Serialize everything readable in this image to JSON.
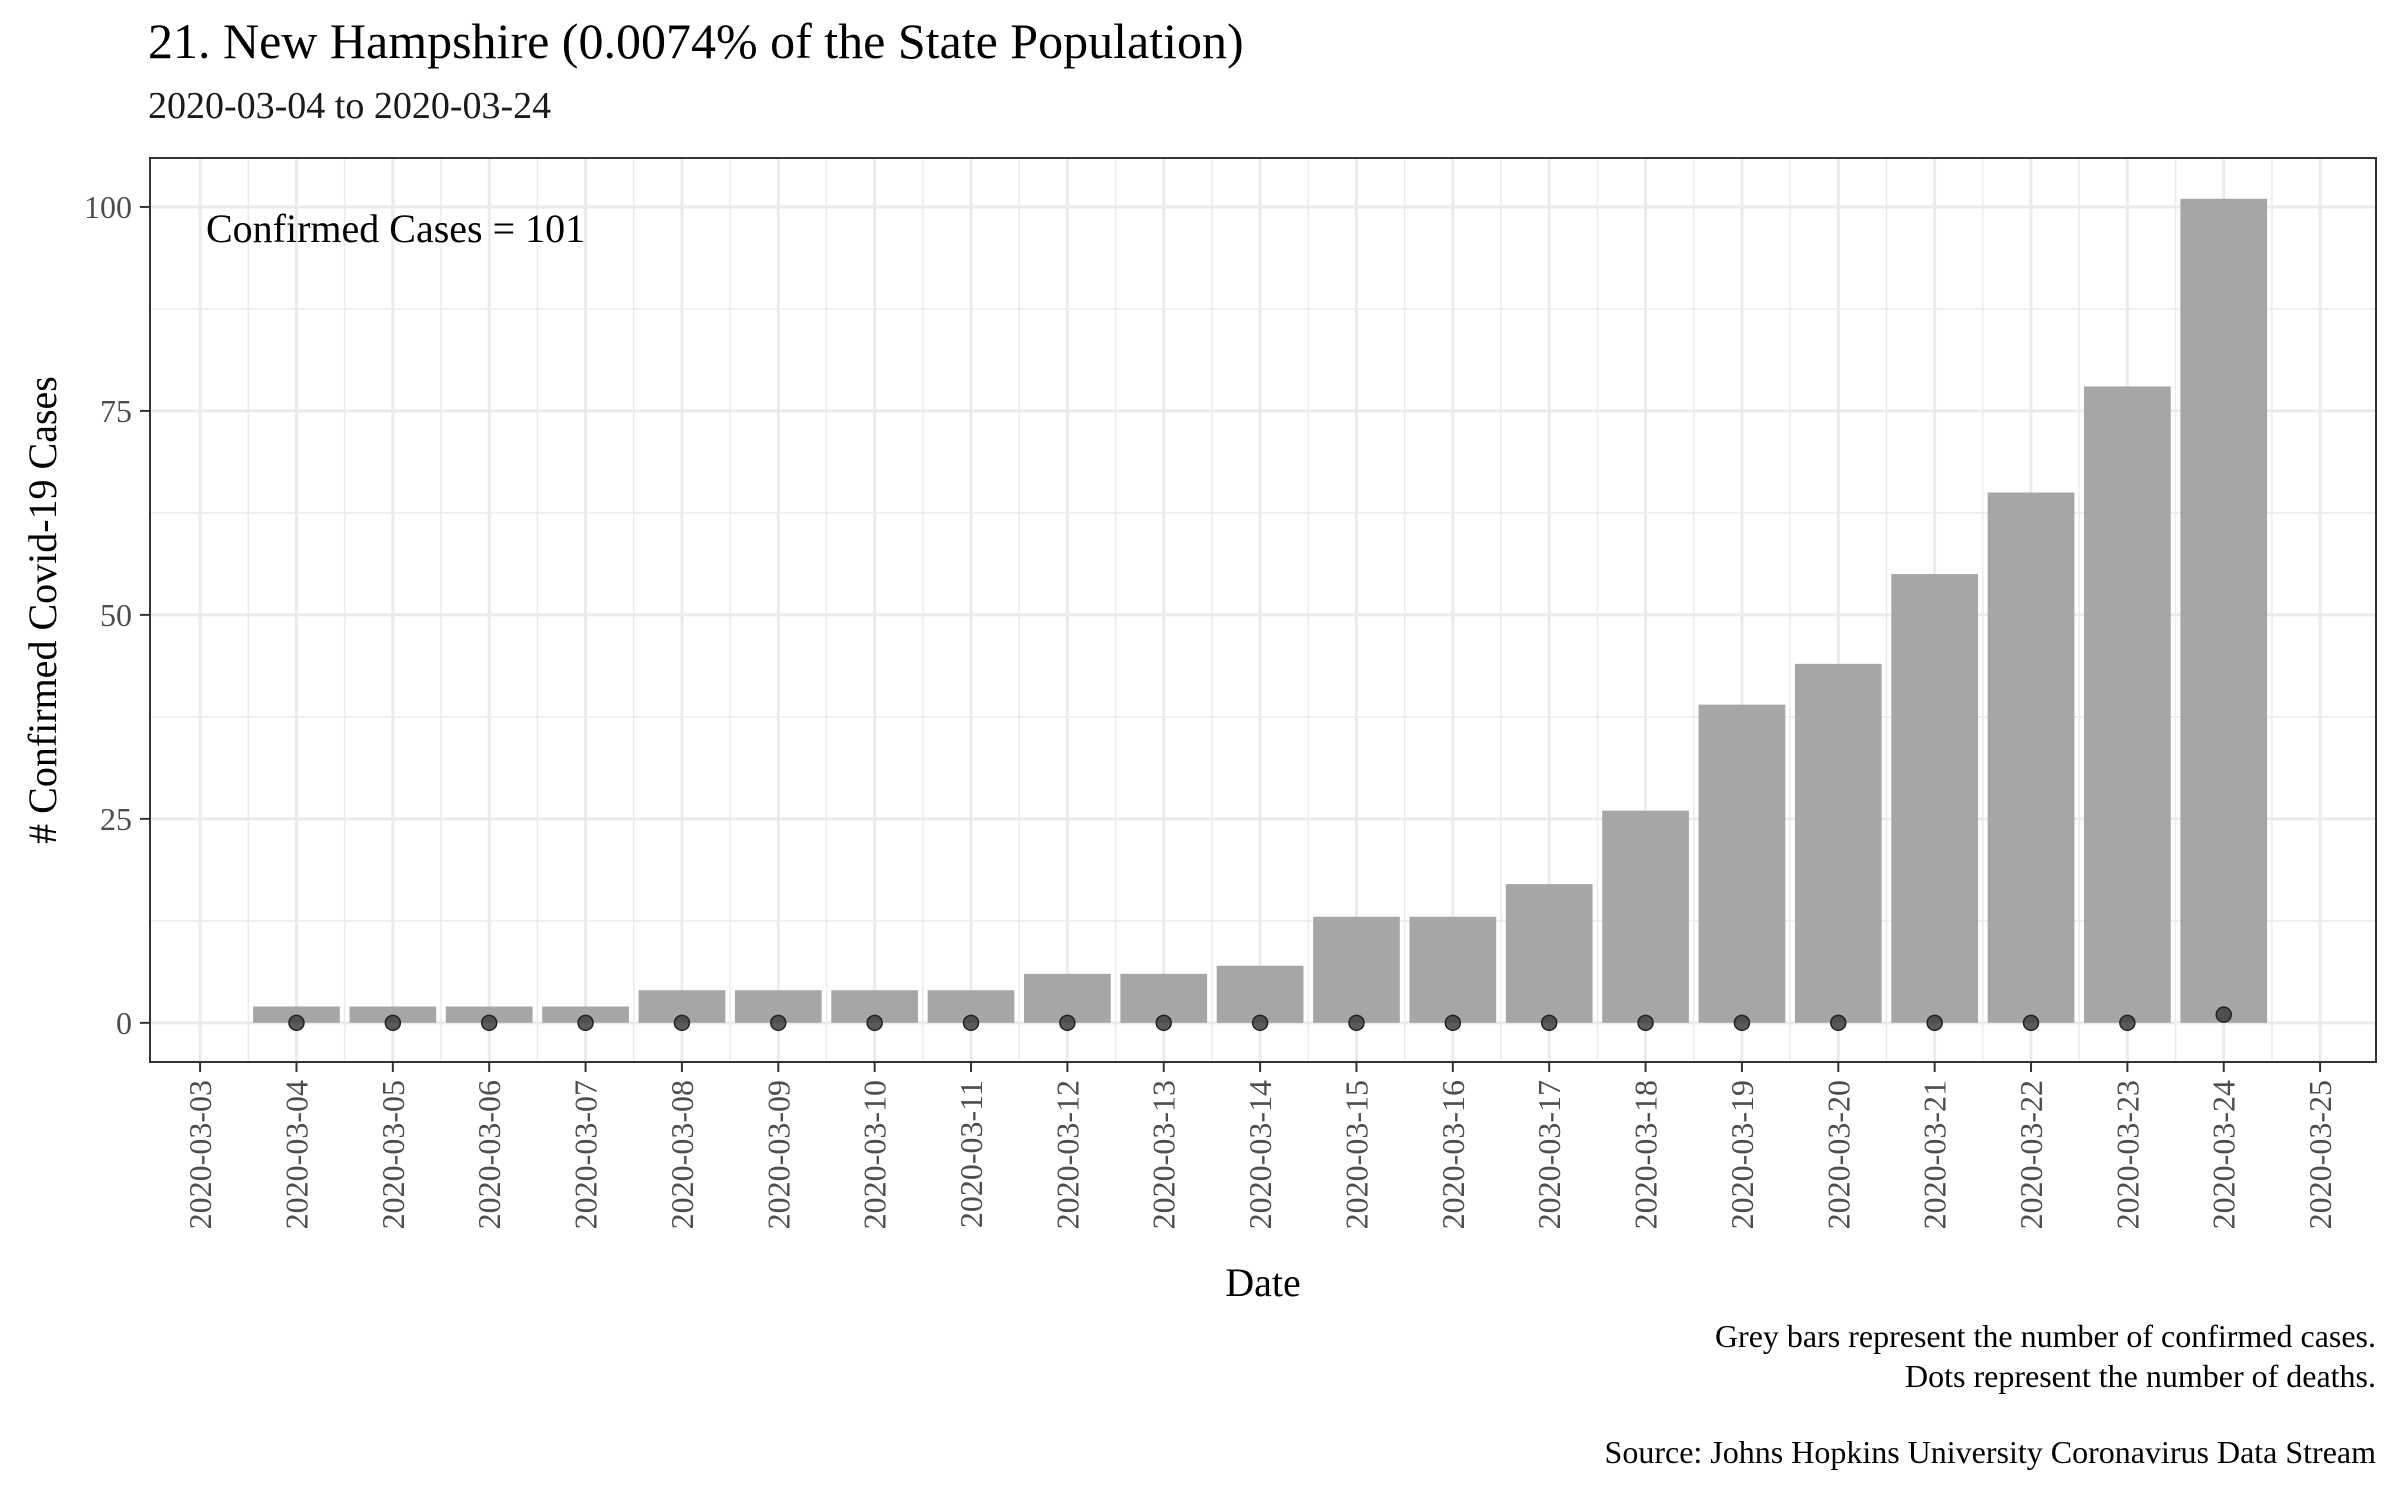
{
  "title": "21. New Hampshire (0.0074% of the State Population)",
  "subtitle": "2020-03-04 to 2020-03-24",
  "annotation": "Confirmed Cases = 101",
  "caption": {
    "line1": "Grey bars represent the number of confirmed cases.",
    "line2": "Dots represent the number of deaths.",
    "source": "Source: Johns Hopkins University Coronavirus Data Stream"
  },
  "colors": {
    "bar": "#a6a6a6",
    "dot": "#404040",
    "grid": "#ebebeb",
    "panel_border": "#333333"
  },
  "chart_data": {
    "type": "bar",
    "xlabel": "Date",
    "ylabel": "# Confirmed Covid-19 Cases",
    "ylim": [
      -4.8,
      106
    ],
    "yticks": [
      0,
      25,
      50,
      75,
      100
    ],
    "x_ticks": [
      "2020-03-03",
      "2020-03-04",
      "2020-03-05",
      "2020-03-06",
      "2020-03-07",
      "2020-03-08",
      "2020-03-09",
      "2020-03-10",
      "2020-03-11",
      "2020-03-12",
      "2020-03-13",
      "2020-03-14",
      "2020-03-15",
      "2020-03-16",
      "2020-03-17",
      "2020-03-18",
      "2020-03-19",
      "2020-03-20",
      "2020-03-21",
      "2020-03-22",
      "2020-03-23",
      "2020-03-24",
      "2020-03-25"
    ],
    "xlim": [
      "2020-03-02",
      "2020-03-25"
    ],
    "grid": true,
    "categories": [
      "2020-03-04",
      "2020-03-05",
      "2020-03-06",
      "2020-03-07",
      "2020-03-08",
      "2020-03-09",
      "2020-03-10",
      "2020-03-11",
      "2020-03-12",
      "2020-03-13",
      "2020-03-14",
      "2020-03-15",
      "2020-03-16",
      "2020-03-17",
      "2020-03-18",
      "2020-03-19",
      "2020-03-20",
      "2020-03-21",
      "2020-03-22",
      "2020-03-23",
      "2020-03-24"
    ],
    "series": [
      {
        "type": "bar",
        "values": [
          2,
          2,
          2,
          2,
          4,
          4,
          4,
          4,
          6,
          6,
          7,
          13,
          13,
          17,
          26,
          39,
          44,
          55,
          65,
          78,
          101
        ]
      },
      {
        "type": "point",
        "values": [
          0,
          0,
          0,
          0,
          0,
          0,
          0,
          0,
          0,
          0,
          0,
          0,
          0,
          0,
          0,
          0,
          0,
          0,
          0,
          0,
          1
        ]
      }
    ]
  }
}
